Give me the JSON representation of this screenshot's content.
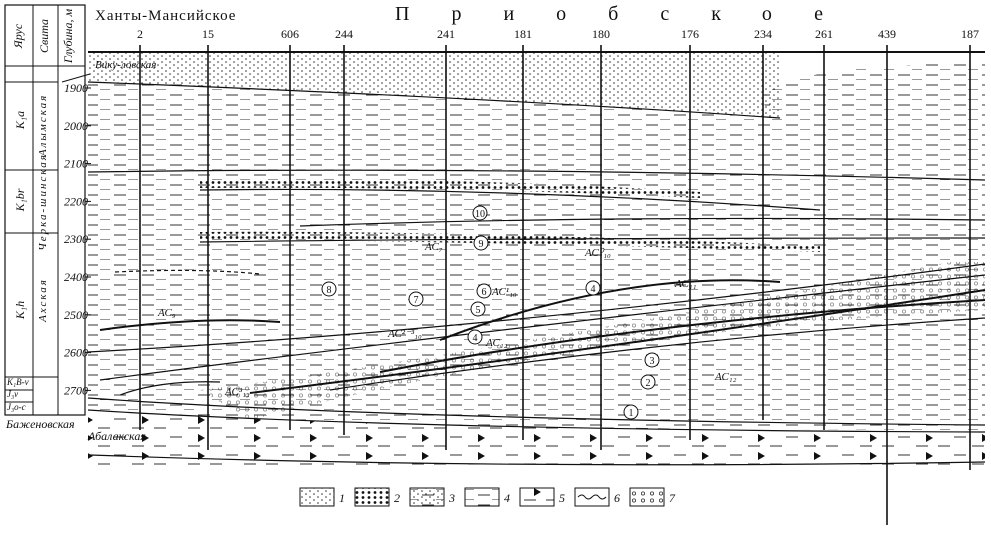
{
  "header": {
    "columns": [
      "Ярус",
      "Свита",
      "Глубина, м"
    ],
    "left_title": "Ханты-Мансийское",
    "right_title": "Приобское"
  },
  "wells": [
    "2",
    "15",
    "606",
    "244",
    "241",
    "181",
    "180",
    "176",
    "234",
    "261",
    "439",
    "187"
  ],
  "depths": [
    "1900",
    "2000",
    "2100",
    "2200",
    "2300",
    "2400",
    "2500",
    "2600",
    "2700"
  ],
  "stages": [
    "K₁a",
    "K₁br",
    "K₁h",
    "K₁B-v",
    "J₃v",
    "J₃o-c"
  ],
  "formations": [
    "Вику-ловская",
    "Алымская",
    "Черка-шинская",
    "Ахская"
  ],
  "bottom_formations": [
    "Баженовская",
    "Абалакская"
  ],
  "layer_labels": [
    "АС₉",
    "АС₇",
    "АС⁰₁₀",
    "АС₁₁",
    "АС¹₁₀",
    "АС²⁻³₁₀",
    "АС₁₂",
    "АС³₁₂",
    "АС₁₂"
  ],
  "circled": [
    "10",
    "9",
    "8",
    "7",
    "6",
    "5",
    "4",
    "4",
    "3",
    "2",
    "1"
  ],
  "legend": [
    "1",
    "2",
    "3",
    "4",
    "5",
    "6",
    "7"
  ]
}
